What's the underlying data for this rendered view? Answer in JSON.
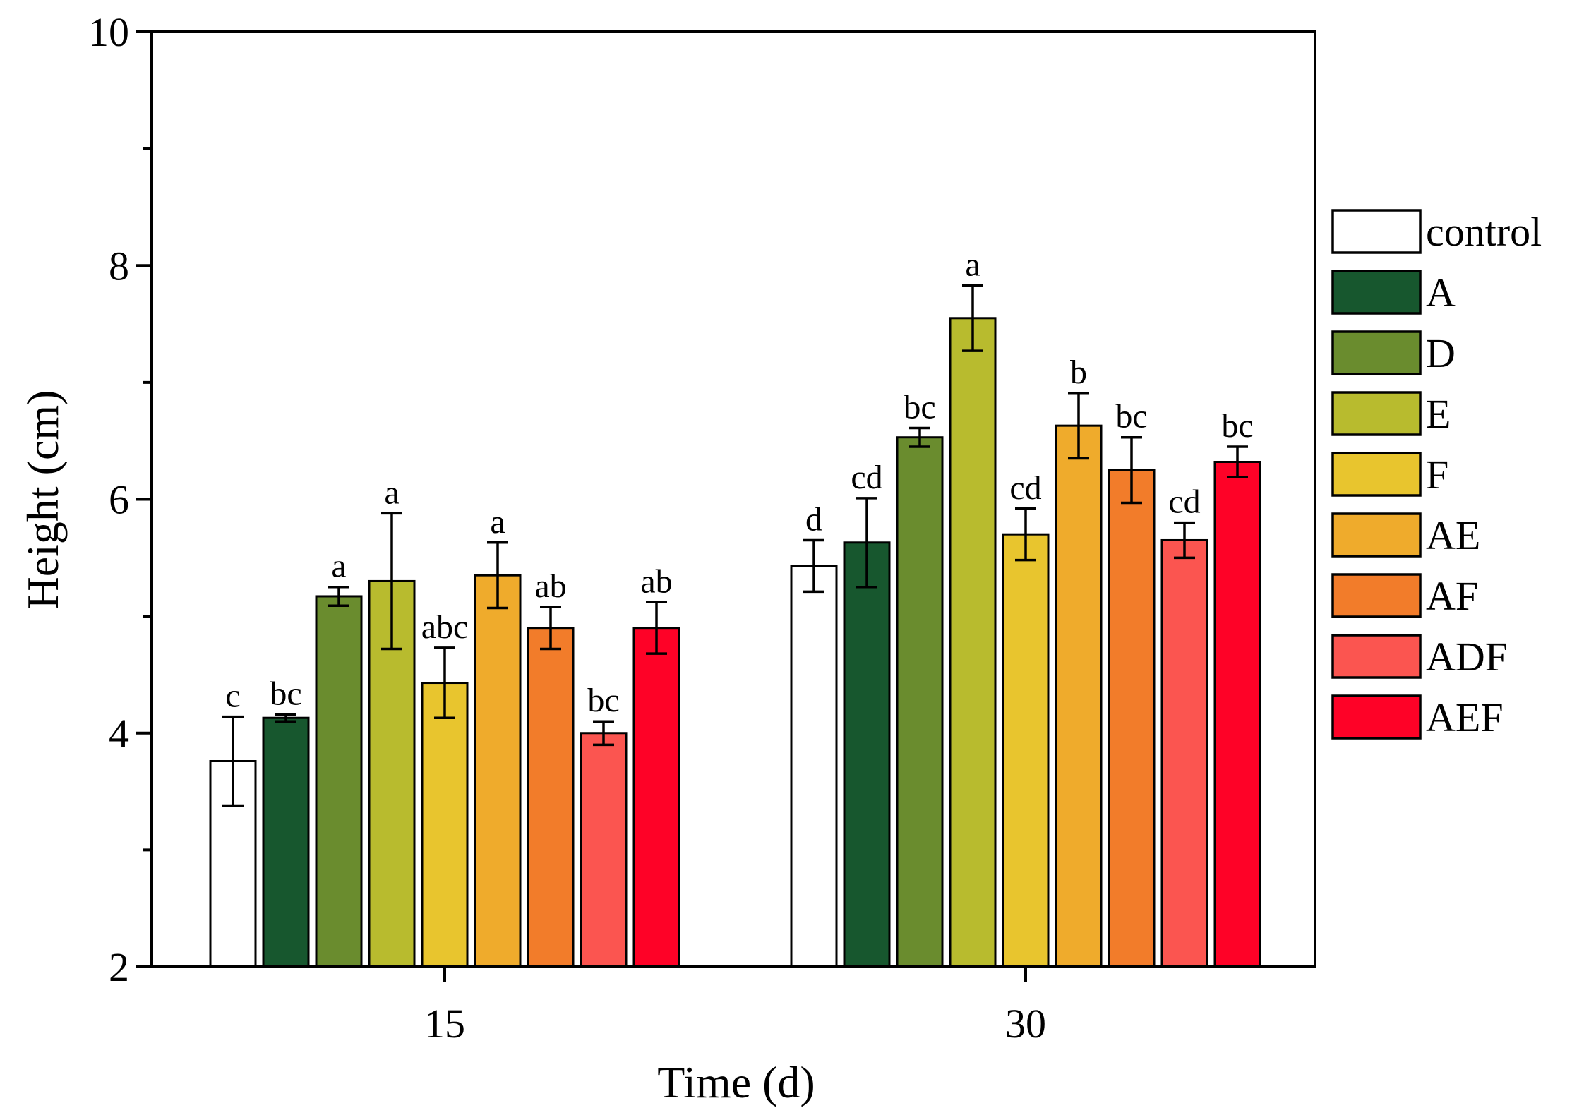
{
  "chart_data": {
    "type": "bar",
    "title": "",
    "xlabel": "Time (d)",
    "ylabel": "Height (cm)",
    "ylim": [
      2,
      10
    ],
    "yticks": [
      2,
      4,
      6,
      8,
      10
    ],
    "categories": [
      "15",
      "30"
    ],
    "legend_position": "right",
    "grid": false,
    "series": [
      {
        "name": "control",
        "color": "#ffffff",
        "values": [
          3.76,
          5.43
        ],
        "errors": [
          0.38,
          0.22
        ],
        "labels": [
          "c",
          "d"
        ]
      },
      {
        "name": "A",
        "color": "#17572e",
        "values": [
          4.13,
          5.63
        ],
        "errors": [
          0.03,
          0.38
        ],
        "labels": [
          "bc",
          "cd"
        ]
      },
      {
        "name": "D",
        "color": "#6a8c2e",
        "values": [
          5.17,
          6.53
        ],
        "errors": [
          0.08,
          0.08
        ],
        "labels": [
          "a",
          "bc"
        ]
      },
      {
        "name": "E",
        "color": "#b8bb2e",
        "values": [
          5.3,
          7.55
        ],
        "errors": [
          0.58,
          0.28
        ],
        "labels": [
          "a",
          "a"
        ]
      },
      {
        "name": "F",
        "color": "#e8c52e",
        "values": [
          4.43,
          5.7
        ],
        "errors": [
          0.3,
          0.22
        ],
        "labels": [
          "abc",
          "cd"
        ]
      },
      {
        "name": "AE",
        "color": "#efab2c",
        "values": [
          5.35,
          6.63
        ],
        "errors": [
          0.28,
          0.28
        ],
        "labels": [
          "a",
          "b"
        ]
      },
      {
        "name": "AF",
        "color": "#f27c2a",
        "values": [
          4.9,
          6.25
        ],
        "errors": [
          0.18,
          0.28
        ],
        "labels": [
          "ab",
          "bc"
        ]
      },
      {
        "name": "ADF",
        "color": "#fb5550",
        "values": [
          4.0,
          5.65
        ],
        "errors": [
          0.1,
          0.15
        ],
        "labels": [
          "bc",
          "cd"
        ]
      },
      {
        "name": "AEF",
        "color": "#fe0227",
        "values": [
          4.9,
          6.32
        ],
        "errors": [
          0.22,
          0.13
        ],
        "labels": [
          "ab",
          "bc"
        ]
      }
    ]
  }
}
